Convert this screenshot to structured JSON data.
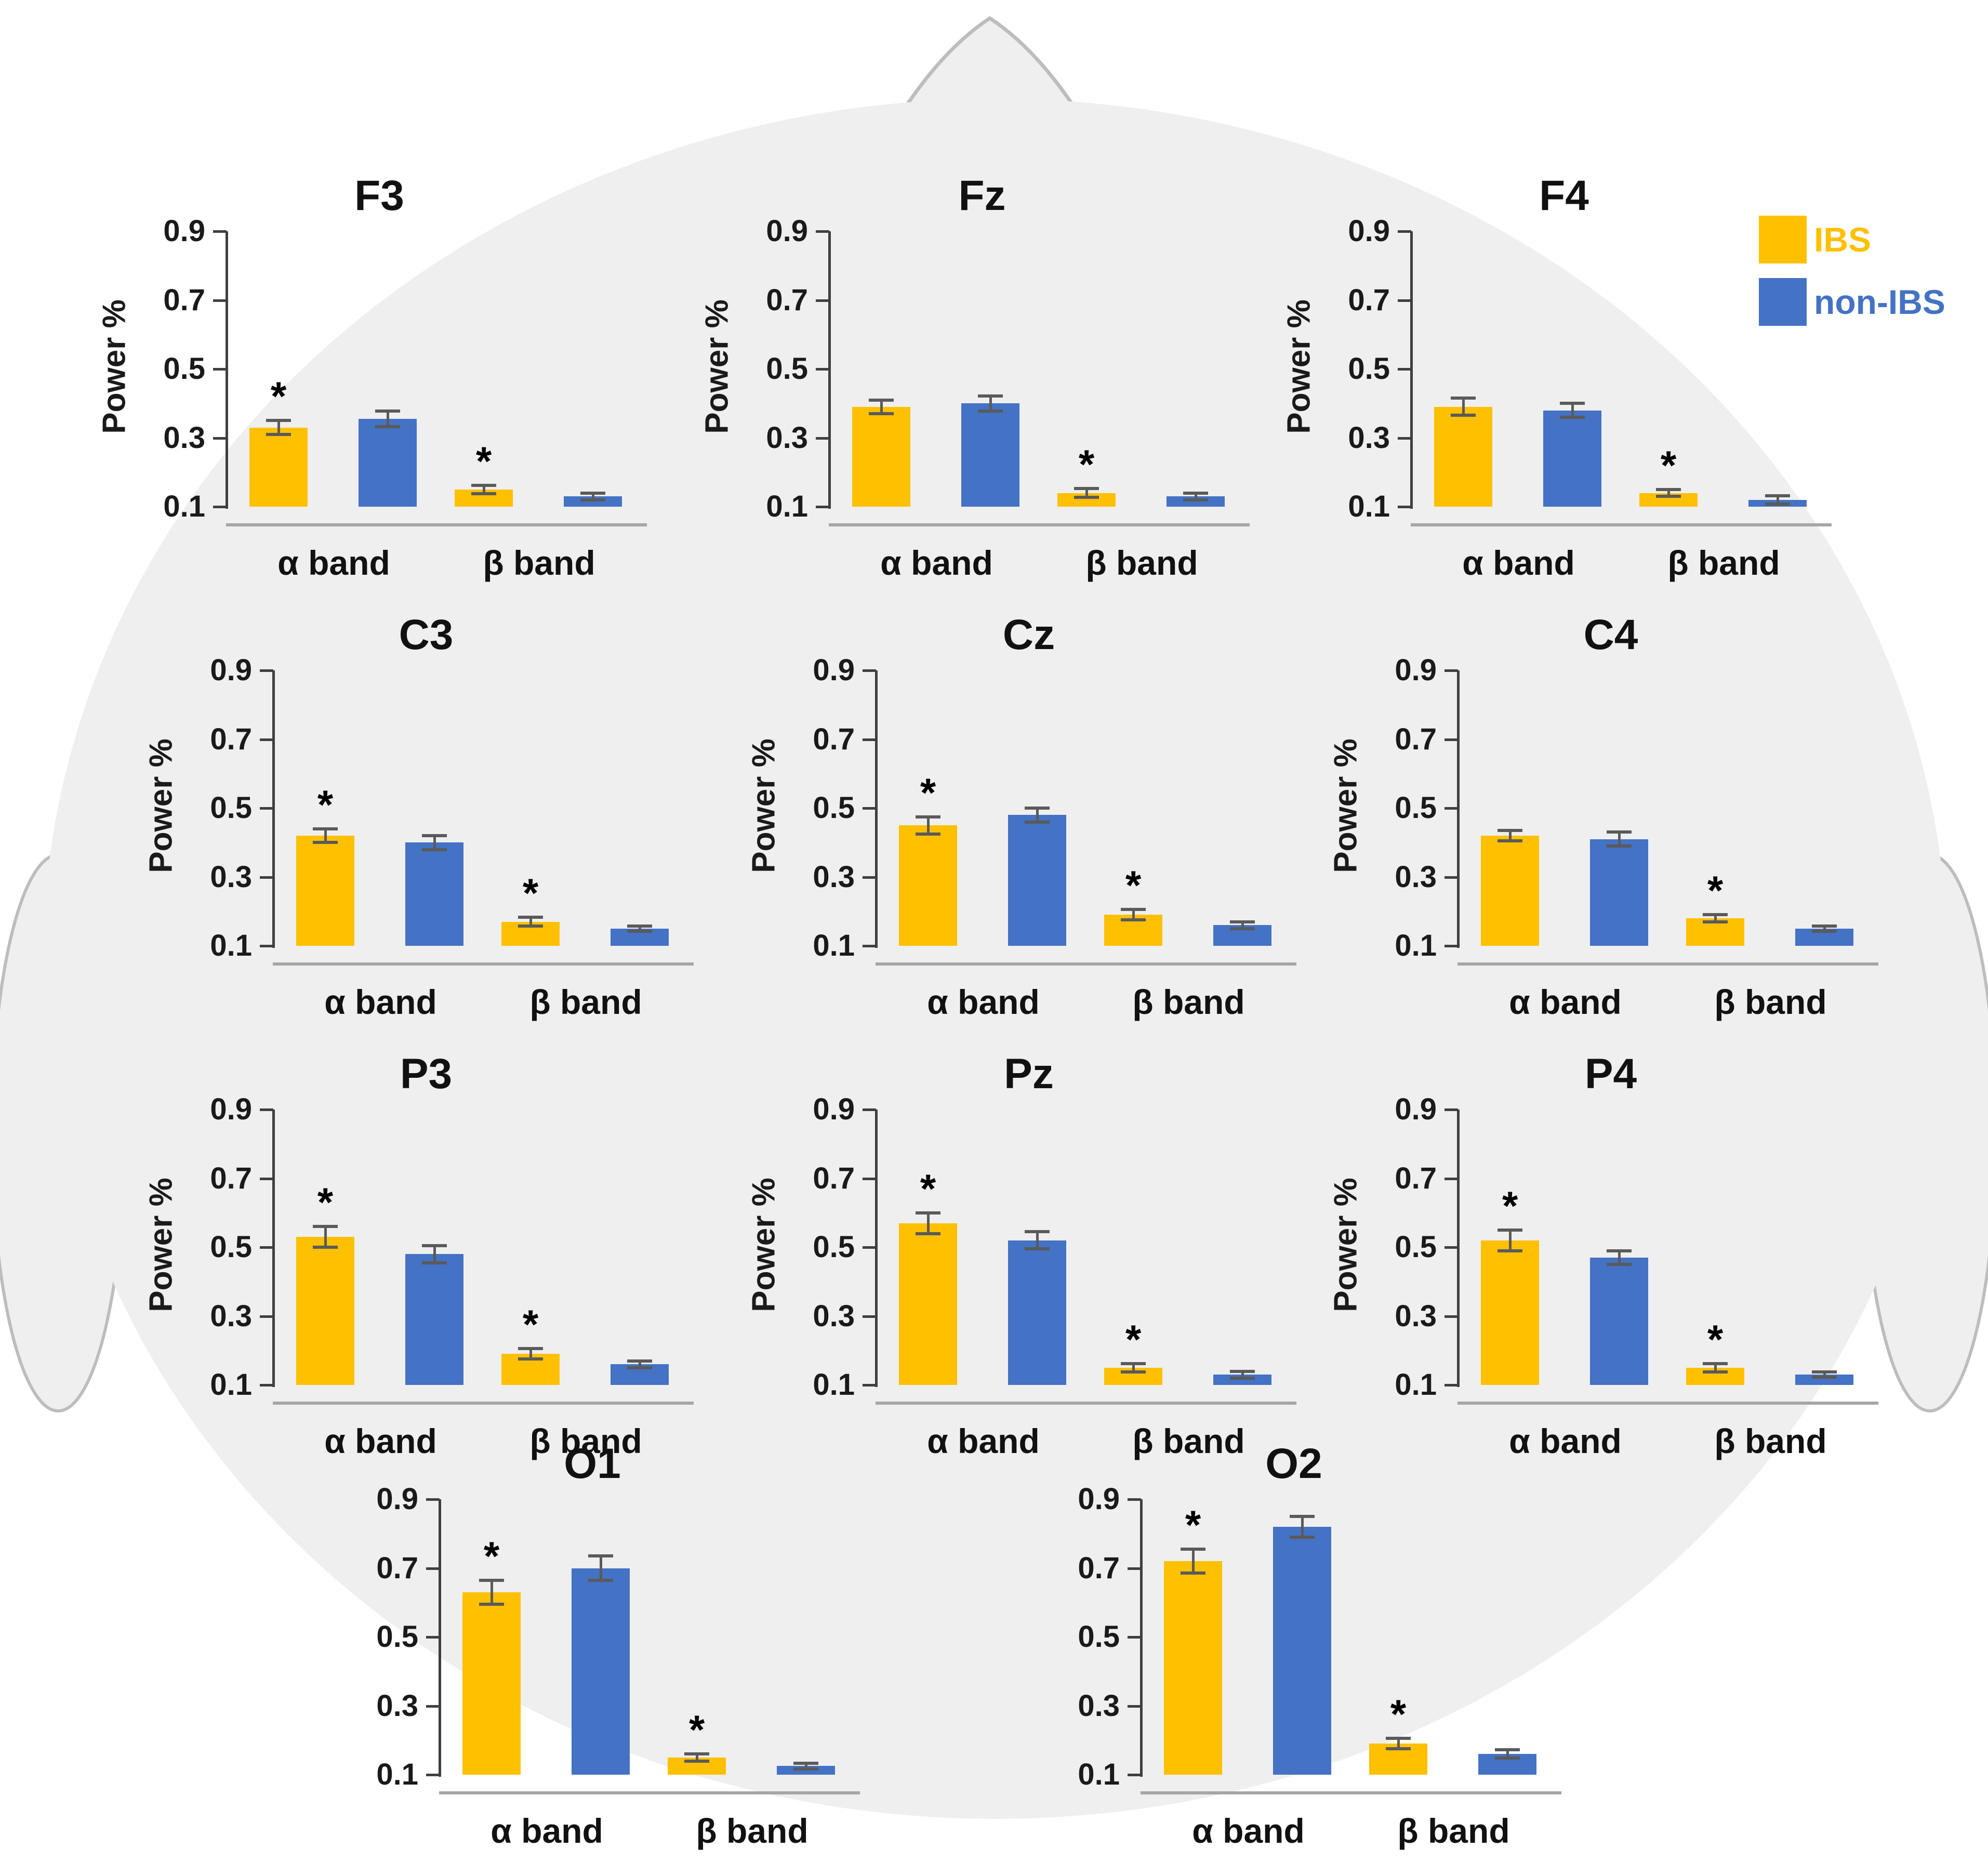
{
  "figure": {
    "description": "EEG relative power (Power %) in alpha and beta bands for IBS vs non-IBS groups at 11 scalp electrodes arranged over a head silhouette",
    "head_fill_color": "#efefef",
    "head_outline_color": "#bdbdbd",
    "background_color": "#ffffff",
    "significance_marker": "*"
  },
  "legend": {
    "items": [
      {
        "label": "IBS",
        "color": "#FFC000"
      },
      {
        "label": "non-IBS",
        "color": "#4472C4"
      }
    ]
  },
  "chart_data": [
    {
      "id": "F3",
      "type": "bar",
      "title": "F3",
      "ylabel": "Power %",
      "ylim": [
        0.1,
        0.9
      ],
      "yticks": [
        "0.9",
        "0.7",
        "0.5",
        "0.3",
        "0.1"
      ],
      "categories": [
        "α band",
        "β band"
      ],
      "series": [
        {
          "name": "IBS",
          "color": "#FFC000",
          "values": [
            0.33,
            0.15
          ],
          "errors": [
            0.02,
            0.012
          ],
          "sig": [
            true,
            true
          ]
        },
        {
          "name": "non-IBS",
          "color": "#4472C4",
          "values": [
            0.355,
            0.13
          ],
          "errors": [
            0.022,
            0.01
          ],
          "sig": [
            false,
            false
          ]
        }
      ]
    },
    {
      "id": "Fz",
      "type": "bar",
      "title": "Fz",
      "ylabel": "Power %",
      "ylim": [
        0.1,
        0.9
      ],
      "yticks": [
        "0.9",
        "0.7",
        "0.5",
        "0.3",
        "0.1"
      ],
      "categories": [
        "α band",
        "β band"
      ],
      "series": [
        {
          "name": "IBS",
          "color": "#FFC000",
          "values": [
            0.39,
            0.14
          ],
          "errors": [
            0.02,
            0.013
          ],
          "sig": [
            false,
            true
          ]
        },
        {
          "name": "non-IBS",
          "color": "#4472C4",
          "values": [
            0.4,
            0.13
          ],
          "errors": [
            0.022,
            0.01
          ],
          "sig": [
            false,
            false
          ]
        }
      ]
    },
    {
      "id": "F4",
      "type": "bar",
      "title": "F4",
      "ylabel": "Power %",
      "ylim": [
        0.1,
        0.9
      ],
      "yticks": [
        "0.9",
        "0.7",
        "0.5",
        "0.3",
        "0.1"
      ],
      "categories": [
        "α band",
        "β band"
      ],
      "series": [
        {
          "name": "IBS",
          "color": "#FFC000",
          "values": [
            0.39,
            0.14
          ],
          "errors": [
            0.025,
            0.01
          ],
          "sig": [
            false,
            true
          ]
        },
        {
          "name": "non-IBS",
          "color": "#4472C4",
          "values": [
            0.38,
            0.12
          ],
          "errors": [
            0.02,
            0.012
          ],
          "sig": [
            false,
            false
          ]
        }
      ]
    },
    {
      "id": "C3",
      "type": "bar",
      "title": "C3",
      "ylabel": "Power %",
      "ylim": [
        0.1,
        0.9
      ],
      "yticks": [
        "0.9",
        "0.7",
        "0.5",
        "0.3",
        "0.1"
      ],
      "categories": [
        "α band",
        "β band"
      ],
      "series": [
        {
          "name": "IBS",
          "color": "#FFC000",
          "values": [
            0.42,
            0.17
          ],
          "errors": [
            0.02,
            0.013
          ],
          "sig": [
            true,
            true
          ]
        },
        {
          "name": "non-IBS",
          "color": "#4472C4",
          "values": [
            0.4,
            0.15
          ],
          "errors": [
            0.02,
            0.008
          ],
          "sig": [
            false,
            false
          ]
        }
      ]
    },
    {
      "id": "Cz",
      "type": "bar",
      "title": "Cz",
      "ylabel": "Power %",
      "ylim": [
        0.1,
        0.9
      ],
      "yticks": [
        "0.9",
        "0.7",
        "0.5",
        "0.3",
        "0.1"
      ],
      "categories": [
        "α band",
        "β band"
      ],
      "series": [
        {
          "name": "IBS",
          "color": "#FFC000",
          "values": [
            0.45,
            0.19
          ],
          "errors": [
            0.025,
            0.015
          ],
          "sig": [
            true,
            true
          ]
        },
        {
          "name": "non-IBS",
          "color": "#4472C4",
          "values": [
            0.48,
            0.16
          ],
          "errors": [
            0.02,
            0.01
          ],
          "sig": [
            false,
            false
          ]
        }
      ]
    },
    {
      "id": "C4",
      "type": "bar",
      "title": "C4",
      "ylabel": "Power %",
      "ylim": [
        0.1,
        0.9
      ],
      "yticks": [
        "0.9",
        "0.7",
        "0.5",
        "0.3",
        "0.1"
      ],
      "categories": [
        "α band",
        "β band"
      ],
      "series": [
        {
          "name": "IBS",
          "color": "#FFC000",
          "values": [
            0.42,
            0.18
          ],
          "errors": [
            0.015,
            0.01
          ],
          "sig": [
            false,
            true
          ]
        },
        {
          "name": "non-IBS",
          "color": "#4472C4",
          "values": [
            0.41,
            0.15
          ],
          "errors": [
            0.02,
            0.008
          ],
          "sig": [
            false,
            false
          ]
        }
      ]
    },
    {
      "id": "P3",
      "type": "bar",
      "title": "P3",
      "ylabel": "Power %",
      "ylim": [
        0.1,
        0.9
      ],
      "yticks": [
        "0.9",
        "0.7",
        "0.5",
        "0.3",
        "0.1"
      ],
      "categories": [
        "α band",
        "β band"
      ],
      "series": [
        {
          "name": "IBS",
          "color": "#FFC000",
          "values": [
            0.53,
            0.19
          ],
          "errors": [
            0.03,
            0.015
          ],
          "sig": [
            true,
            true
          ]
        },
        {
          "name": "non-IBS",
          "color": "#4472C4",
          "values": [
            0.48,
            0.16
          ],
          "errors": [
            0.025,
            0.01
          ],
          "sig": [
            false,
            false
          ]
        }
      ]
    },
    {
      "id": "Pz",
      "type": "bar",
      "title": "Pz",
      "ylabel": "Power %",
      "ylim": [
        0.1,
        0.9
      ],
      "yticks": [
        "0.9",
        "0.7",
        "0.5",
        "0.3",
        "0.1"
      ],
      "categories": [
        "α band",
        "β band"
      ],
      "series": [
        {
          "name": "IBS",
          "color": "#FFC000",
          "values": [
            0.57,
            0.15
          ],
          "errors": [
            0.03,
            0.012
          ],
          "sig": [
            true,
            true
          ]
        },
        {
          "name": "non-IBS",
          "color": "#4472C4",
          "values": [
            0.52,
            0.13
          ],
          "errors": [
            0.025,
            0.01
          ],
          "sig": [
            false,
            false
          ]
        }
      ]
    },
    {
      "id": "P4",
      "type": "bar",
      "title": "P4",
      "ylabel": "Power %",
      "ylim": [
        0.1,
        0.9
      ],
      "yticks": [
        "0.9",
        "0.7",
        "0.5",
        "0.3",
        "0.1"
      ],
      "categories": [
        "α band",
        "β band"
      ],
      "series": [
        {
          "name": "IBS",
          "color": "#FFC000",
          "values": [
            0.52,
            0.15
          ],
          "errors": [
            0.03,
            0.012
          ],
          "sig": [
            true,
            true
          ]
        },
        {
          "name": "non-IBS",
          "color": "#4472C4",
          "values": [
            0.47,
            0.13
          ],
          "errors": [
            0.02,
            0.008
          ],
          "sig": [
            false,
            false
          ]
        }
      ]
    },
    {
      "id": "O1",
      "type": "bar",
      "title": "O1",
      "ylabel": null,
      "ylim": [
        0.1,
        0.9
      ],
      "yticks": [
        "0.9",
        "0.7",
        "0.5",
        "0.3",
        "0.1"
      ],
      "categories": [
        "α band",
        "β band"
      ],
      "series": [
        {
          "name": "IBS",
          "color": "#FFC000",
          "values": [
            0.63,
            0.15
          ],
          "errors": [
            0.035,
            0.01
          ],
          "sig": [
            true,
            true
          ]
        },
        {
          "name": "non-IBS",
          "color": "#4472C4",
          "values": [
            0.7,
            0.125
          ],
          "errors": [
            0.035,
            0.008
          ],
          "sig": [
            false,
            false
          ]
        }
      ]
    },
    {
      "id": "O2",
      "type": "bar",
      "title": "O2",
      "ylabel": null,
      "ylim": [
        0.1,
        0.9
      ],
      "yticks": [
        "0.9",
        "0.7",
        "0.5",
        "0.3",
        "0.1"
      ],
      "categories": [
        "α band",
        "β band"
      ],
      "series": [
        {
          "name": "IBS",
          "color": "#FFC000",
          "values": [
            0.72,
            0.19
          ],
          "errors": [
            0.035,
            0.015
          ],
          "sig": [
            true,
            true
          ]
        },
        {
          "name": "non-IBS",
          "color": "#4472C4",
          "values": [
            0.82,
            0.16
          ],
          "errors": [
            0.03,
            0.012
          ],
          "sig": [
            false,
            false
          ]
        }
      ]
    }
  ]
}
